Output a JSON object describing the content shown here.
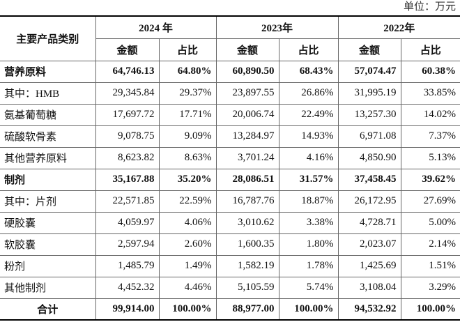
{
  "header": {
    "unit": "单位：万元"
  },
  "table": {
    "header_top": [
      "主要产品类别",
      "2024 年",
      "2023年",
      "2022年"
    ],
    "header_sub": [
      "金额",
      "占比",
      "金额",
      "占比",
      "金额",
      "占比"
    ],
    "rows": [
      [
        "营养原料",
        "64,746.13",
        "64.80%",
        "60,890.50",
        "68.43%",
        "57,074.47",
        "60.38%"
      ],
      [
        "其中：HMB",
        "29,345.84",
        "29.37%",
        "23,897.55",
        "26.86%",
        "31,995.19",
        "33.85%"
      ],
      [
        "氨基葡萄糖",
        "17,697.72",
        "17.71%",
        "20,006.74",
        "22.49%",
        "13,257.30",
        "14.02%"
      ],
      [
        "硫酸软骨素",
        "9,078.75",
        "9.09%",
        "13,284.97",
        "14.93%",
        "6,971.08",
        "7.37%"
      ],
      [
        "其他营养原料",
        "8,623.82",
        "8.63%",
        "3,701.24",
        "4.16%",
        "4,850.90",
        "5.13%"
      ],
      [
        "制剂",
        "35,167.88",
        "35.20%",
        "28,086.51",
        "31.57%",
        "37,458.45",
        "39.62%"
      ],
      [
        "其中：片剂",
        "22,571.85",
        "22.59%",
        "16,787.76",
        "18.87%",
        "26,172.95",
        "27.69%"
      ],
      [
        "硬胶囊",
        "4,059.97",
        "4.06%",
        "3,010.62",
        "3.38%",
        "4,728.71",
        "5.00%"
      ],
      [
        "软胶囊",
        "2,597.94",
        "2.60%",
        "1,600.35",
        "1.80%",
        "2,023.07",
        "2.14%"
      ],
      [
        "粉剂",
        "1,485.79",
        "1.49%",
        "1,582.19",
        "1.78%",
        "1,425.69",
        "1.51%"
      ],
      [
        "其他制剂",
        "4,452.32",
        "4.46%",
        "5,105.59",
        "5.74%",
        "3,108.04",
        "3.29%"
      ],
      [
        "合计",
        "99,914.00",
        "100.00%",
        "88,977.00",
        "100.00%",
        "94,532.92",
        "100.00%"
      ]
    ]
  }
}
